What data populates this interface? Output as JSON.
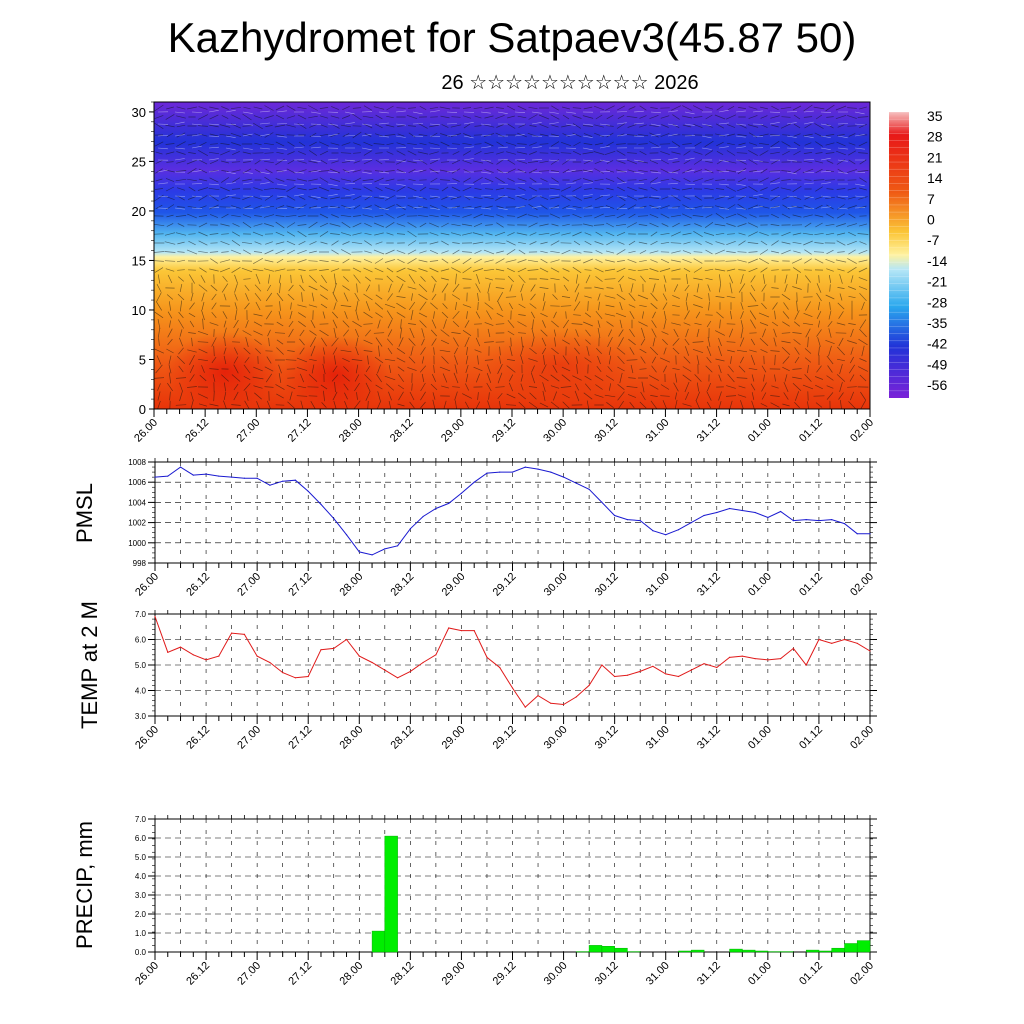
{
  "title": "Kazhydromet for Satpaev3(45.87 50)",
  "subtitle": "26 ☆☆☆☆☆☆☆☆☆☆ 2026",
  "time_labels": [
    "26.00",
    "26.12",
    "27.00",
    "27.12",
    "28.00",
    "28.12",
    "29.00",
    "29.12",
    "30.00",
    "30.12",
    "31.00",
    "31.12",
    "01.00",
    "01.12",
    "02.00"
  ],
  "chart_data": [
    {
      "type": "heatmap",
      "name": "cross-section",
      "y_ticks": [
        0,
        5,
        10,
        15,
        20,
        25,
        30
      ],
      "ylim": [
        0,
        31
      ],
      "colorbar_labels": [
        "35",
        "28",
        "21",
        "14",
        "7",
        "0",
        "-7",
        "-14",
        "-21",
        "-28",
        "-35",
        "-42",
        "-49",
        "-56"
      ],
      "colorbar_range": [
        -63,
        42
      ],
      "overlay": "wind barbs",
      "colors": {
        "warm": "#e8340a",
        "neutral": "#fff2a0",
        "cold": "#1a2fe0",
        "very_cold": "#7a22d8"
      }
    },
    {
      "type": "line",
      "name": "PMSL",
      "ylabel": "PMSL",
      "ylim": [
        998,
        1008
      ],
      "y_ticks": [
        "998",
        "1000",
        "1002",
        "1004",
        "1006",
        "1008"
      ],
      "color": "#1a1ad0",
      "x": [
        0,
        3,
        6,
        9,
        12,
        15,
        18,
        21,
        24,
        27,
        30,
        33,
        36,
        39,
        42,
        45,
        48,
        51,
        54,
        57,
        60,
        63,
        66,
        69,
        72,
        75,
        78,
        81,
        84,
        87,
        90,
        93,
        96,
        99,
        102,
        105,
        108,
        111,
        114,
        117,
        120,
        123,
        126,
        129,
        132,
        135,
        138,
        141,
        144,
        147,
        150,
        153,
        156,
        159,
        162,
        165,
        168
      ],
      "values": [
        1006.5,
        1006.6,
        1007.5,
        1006.7,
        1006.8,
        1006.6,
        1006.5,
        1006.4,
        1006.4,
        1005.7,
        1006.1,
        1006.2,
        1005.1,
        1003.8,
        1002.4,
        1000.8,
        999.1,
        998.8,
        999.4,
        999.7,
        1001.4,
        1002.6,
        1003.4,
        1003.9,
        1004.9,
        1006.0,
        1006.9,
        1007.0,
        1007.0,
        1007.5,
        1007.3,
        1007.0,
        1006.5,
        1005.9,
        1005.3,
        1004.0,
        1002.7,
        1002.3,
        1002.2,
        1001.2,
        1000.8,
        1001.3,
        1002.0,
        1002.7,
        1003.0,
        1003.4,
        1003.2,
        1003.0,
        1002.5,
        1003.1,
        1002.2,
        1002.3,
        1002.2,
        1002.3,
        1001.9,
        1000.9,
        1000.9
      ]
    },
    {
      "type": "line",
      "name": "TEMP at 2 M",
      "ylabel": "TEMP at 2 M",
      "ylim": [
        3.0,
        7.0
      ],
      "y_ticks": [
        "3.0",
        "4.0",
        "5.0",
        "6.0",
        "7.0"
      ],
      "color": "#e01a1a",
      "x": [
        0,
        3,
        6,
        9,
        12,
        15,
        18,
        21,
        24,
        27,
        30,
        33,
        36,
        39,
        42,
        45,
        48,
        51,
        54,
        57,
        60,
        63,
        66,
        69,
        72,
        75,
        78,
        81,
        84,
        87,
        90,
        93,
        96,
        99,
        102,
        105,
        108,
        111,
        114,
        117,
        120,
        123,
        126,
        129,
        132,
        135,
        138,
        141,
        144,
        147,
        150,
        153,
        156,
        159,
        162,
        165,
        168
      ],
      "values": [
        6.9,
        5.5,
        5.7,
        5.4,
        5.2,
        5.35,
        6.25,
        6.2,
        5.35,
        5.1,
        4.7,
        4.5,
        4.55,
        5.6,
        5.65,
        6.0,
        5.35,
        5.1,
        4.8,
        4.5,
        4.75,
        5.1,
        5.4,
        6.45,
        6.35,
        6.35,
        5.3,
        4.9,
        4.1,
        3.35,
        3.8,
        3.5,
        3.45,
        3.75,
        4.2,
        5.0,
        4.55,
        4.6,
        4.75,
        4.95,
        4.65,
        4.55,
        4.8,
        5.05,
        4.9,
        5.3,
        5.35,
        5.25,
        5.2,
        5.25,
        5.65,
        5.0,
        6.0,
        5.85,
        6.0,
        5.85,
        5.55
      ]
    },
    {
      "type": "bar",
      "name": "PRECIP, mm",
      "ylabel": "PRECIP, mm",
      "ylim": [
        0.0,
        7.0
      ],
      "y_ticks": [
        "0.0",
        "1.0",
        "2.0",
        "3.0",
        "4.0",
        "5.0",
        "6.0",
        "7.0"
      ],
      "color": "#00ee00",
      "x": [
        54,
        57,
        102,
        105,
        108,
        111,
        114,
        126,
        129,
        138,
        141,
        144,
        147,
        150,
        156,
        159,
        162,
        165,
        168
      ],
      "values": [
        1.1,
        6.1,
        0.02,
        0.35,
        0.3,
        0.2,
        0.02,
        0.05,
        0.1,
        0.15,
        0.1,
        0.05,
        0.02,
        0.02,
        0.1,
        0.05,
        0.2,
        0.45,
        0.6
      ]
    }
  ]
}
